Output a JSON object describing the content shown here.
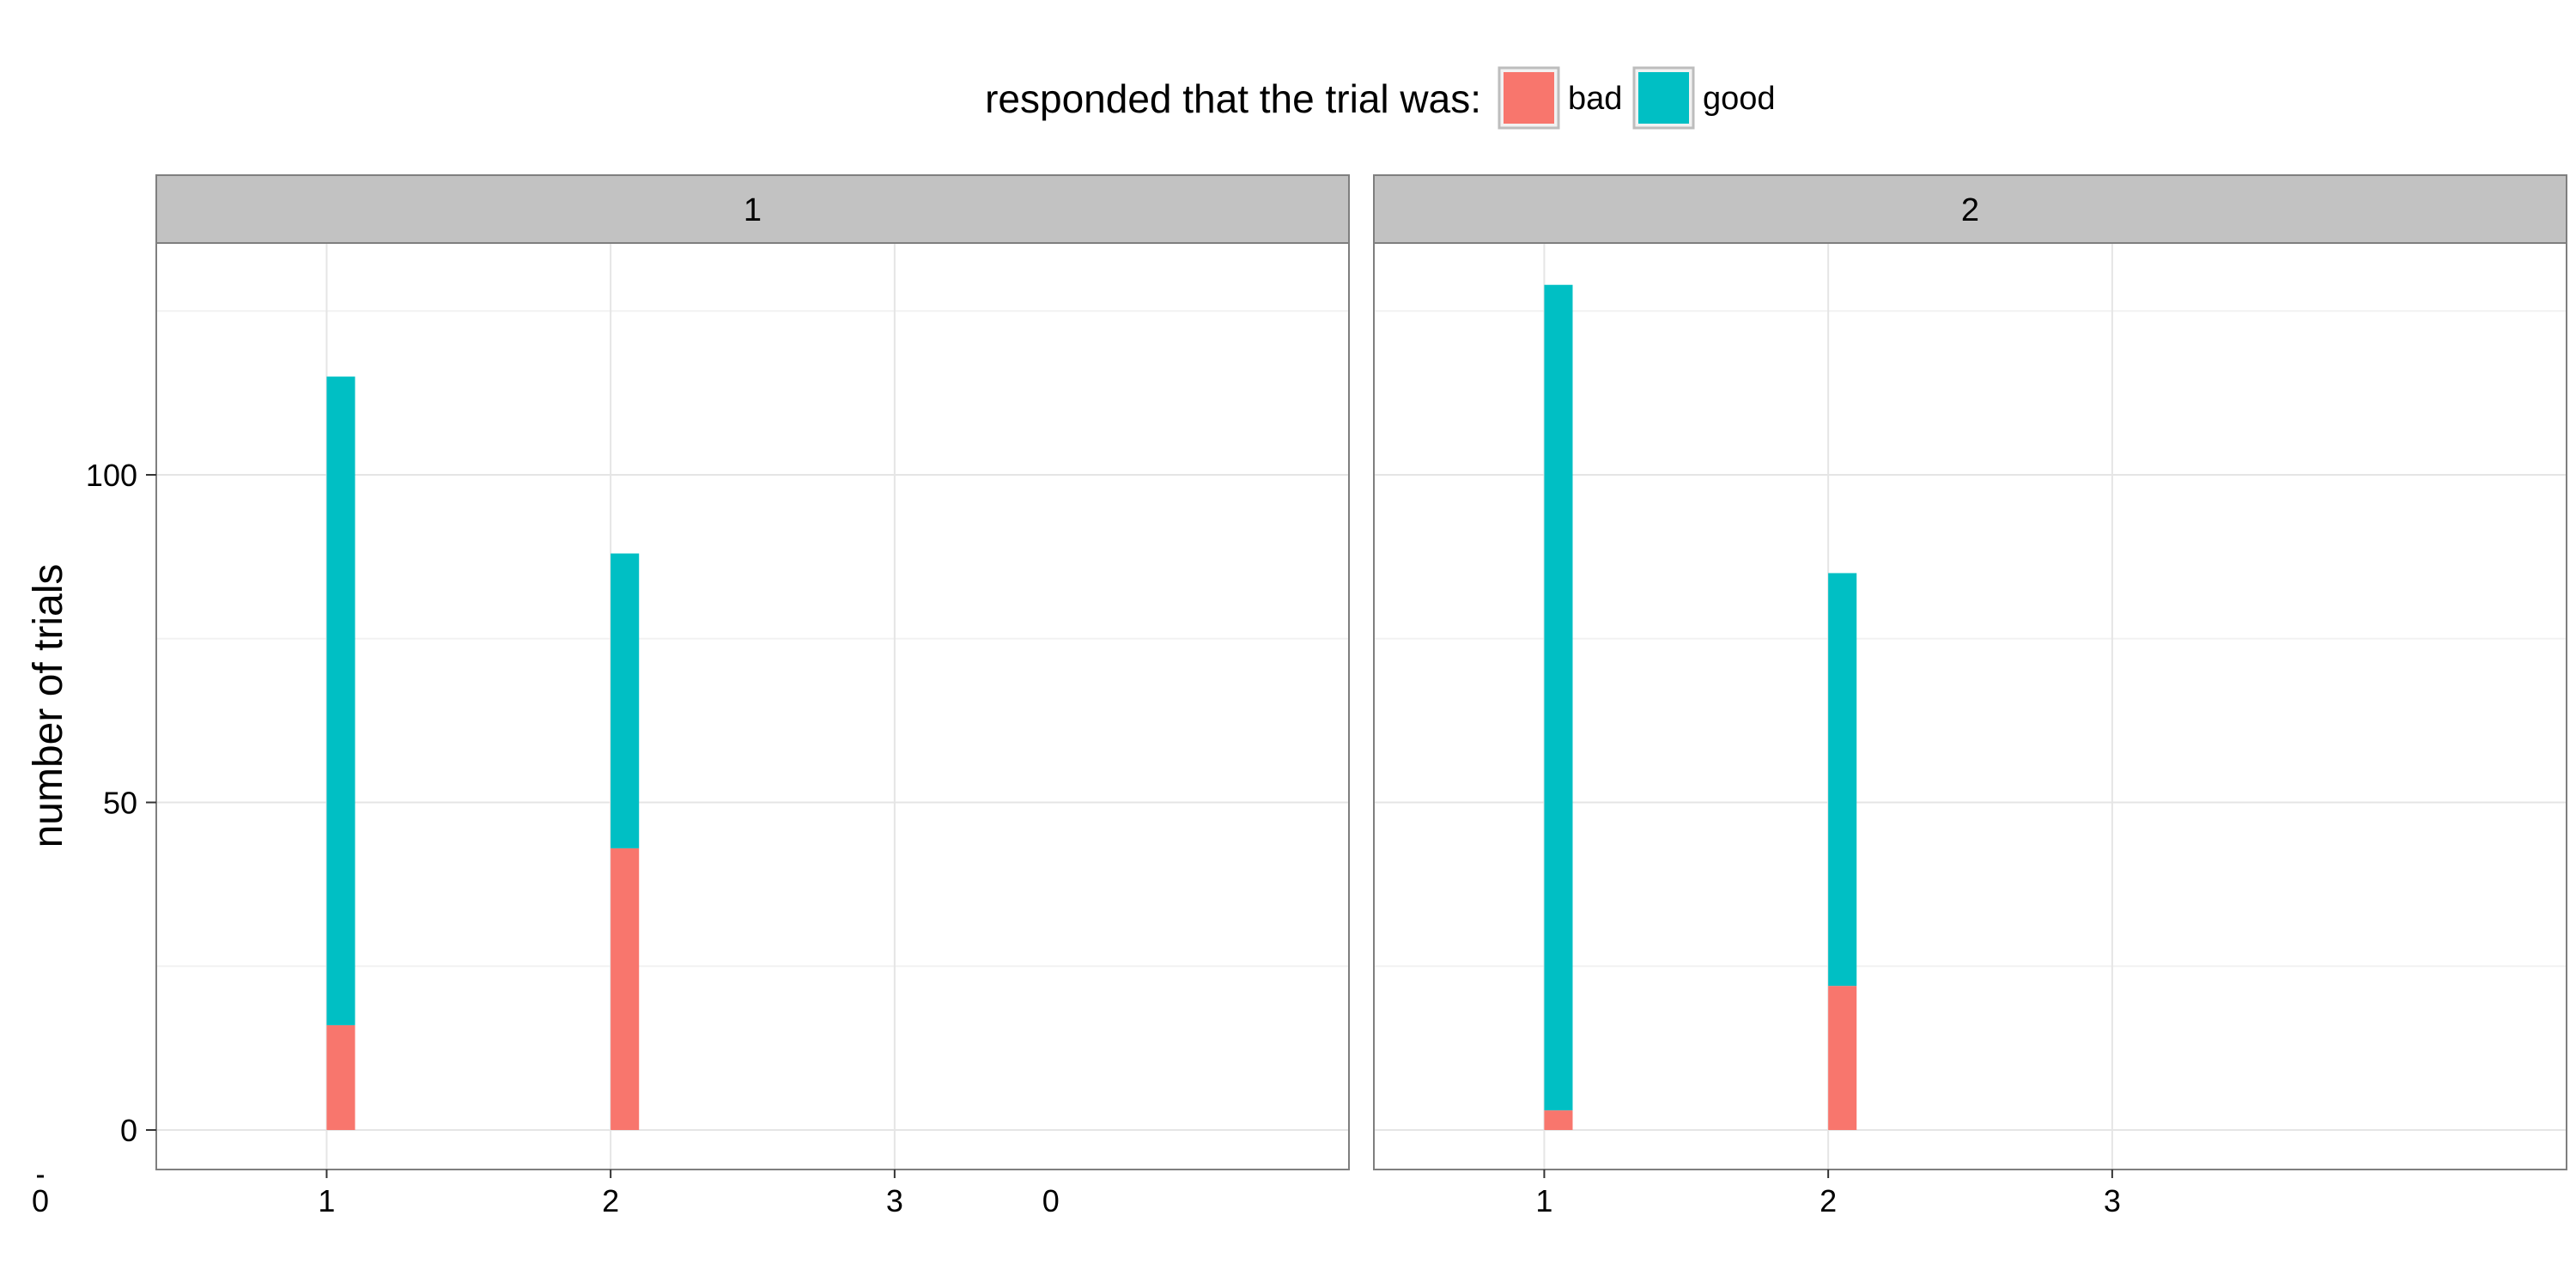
{
  "chart_data": {
    "type": "bar",
    "stacked": true,
    "facet_variable_values": [
      "1",
      "2"
    ],
    "ylabel": "number of trials",
    "xlabel": "",
    "ylim": [
      -6,
      137
    ],
    "xlim": [
      0.4,
      4.6
    ],
    "y_ticks": [
      0,
      50,
      100
    ],
    "x_ticks": [
      1,
      2,
      3
    ],
    "extra_x_tick_labels": [
      {
        "text": "0",
        "panel": 0,
        "x": 0.0
      },
      {
        "text": "0",
        "panel": 0,
        "x": 3.55
      }
    ],
    "grid": true,
    "legend": {
      "title": "responded that the trial was:",
      "placement": "top",
      "entries": [
        {
          "label": "bad",
          "color": "#F8766D"
        },
        {
          "label": "good",
          "color": "#00BFC4"
        }
      ]
    },
    "categories": [
      1,
      2
    ],
    "panels": [
      {
        "label": "1",
        "series": [
          {
            "name": "bad",
            "values": [
              16,
              43
            ]
          },
          {
            "name": "good",
            "values": [
              99,
              45
            ]
          }
        ]
      },
      {
        "label": "2",
        "series": [
          {
            "name": "bad",
            "values": [
              3,
              22
            ]
          },
          {
            "name": "good",
            "values": [
              126,
              63
            ]
          }
        ]
      }
    ]
  }
}
